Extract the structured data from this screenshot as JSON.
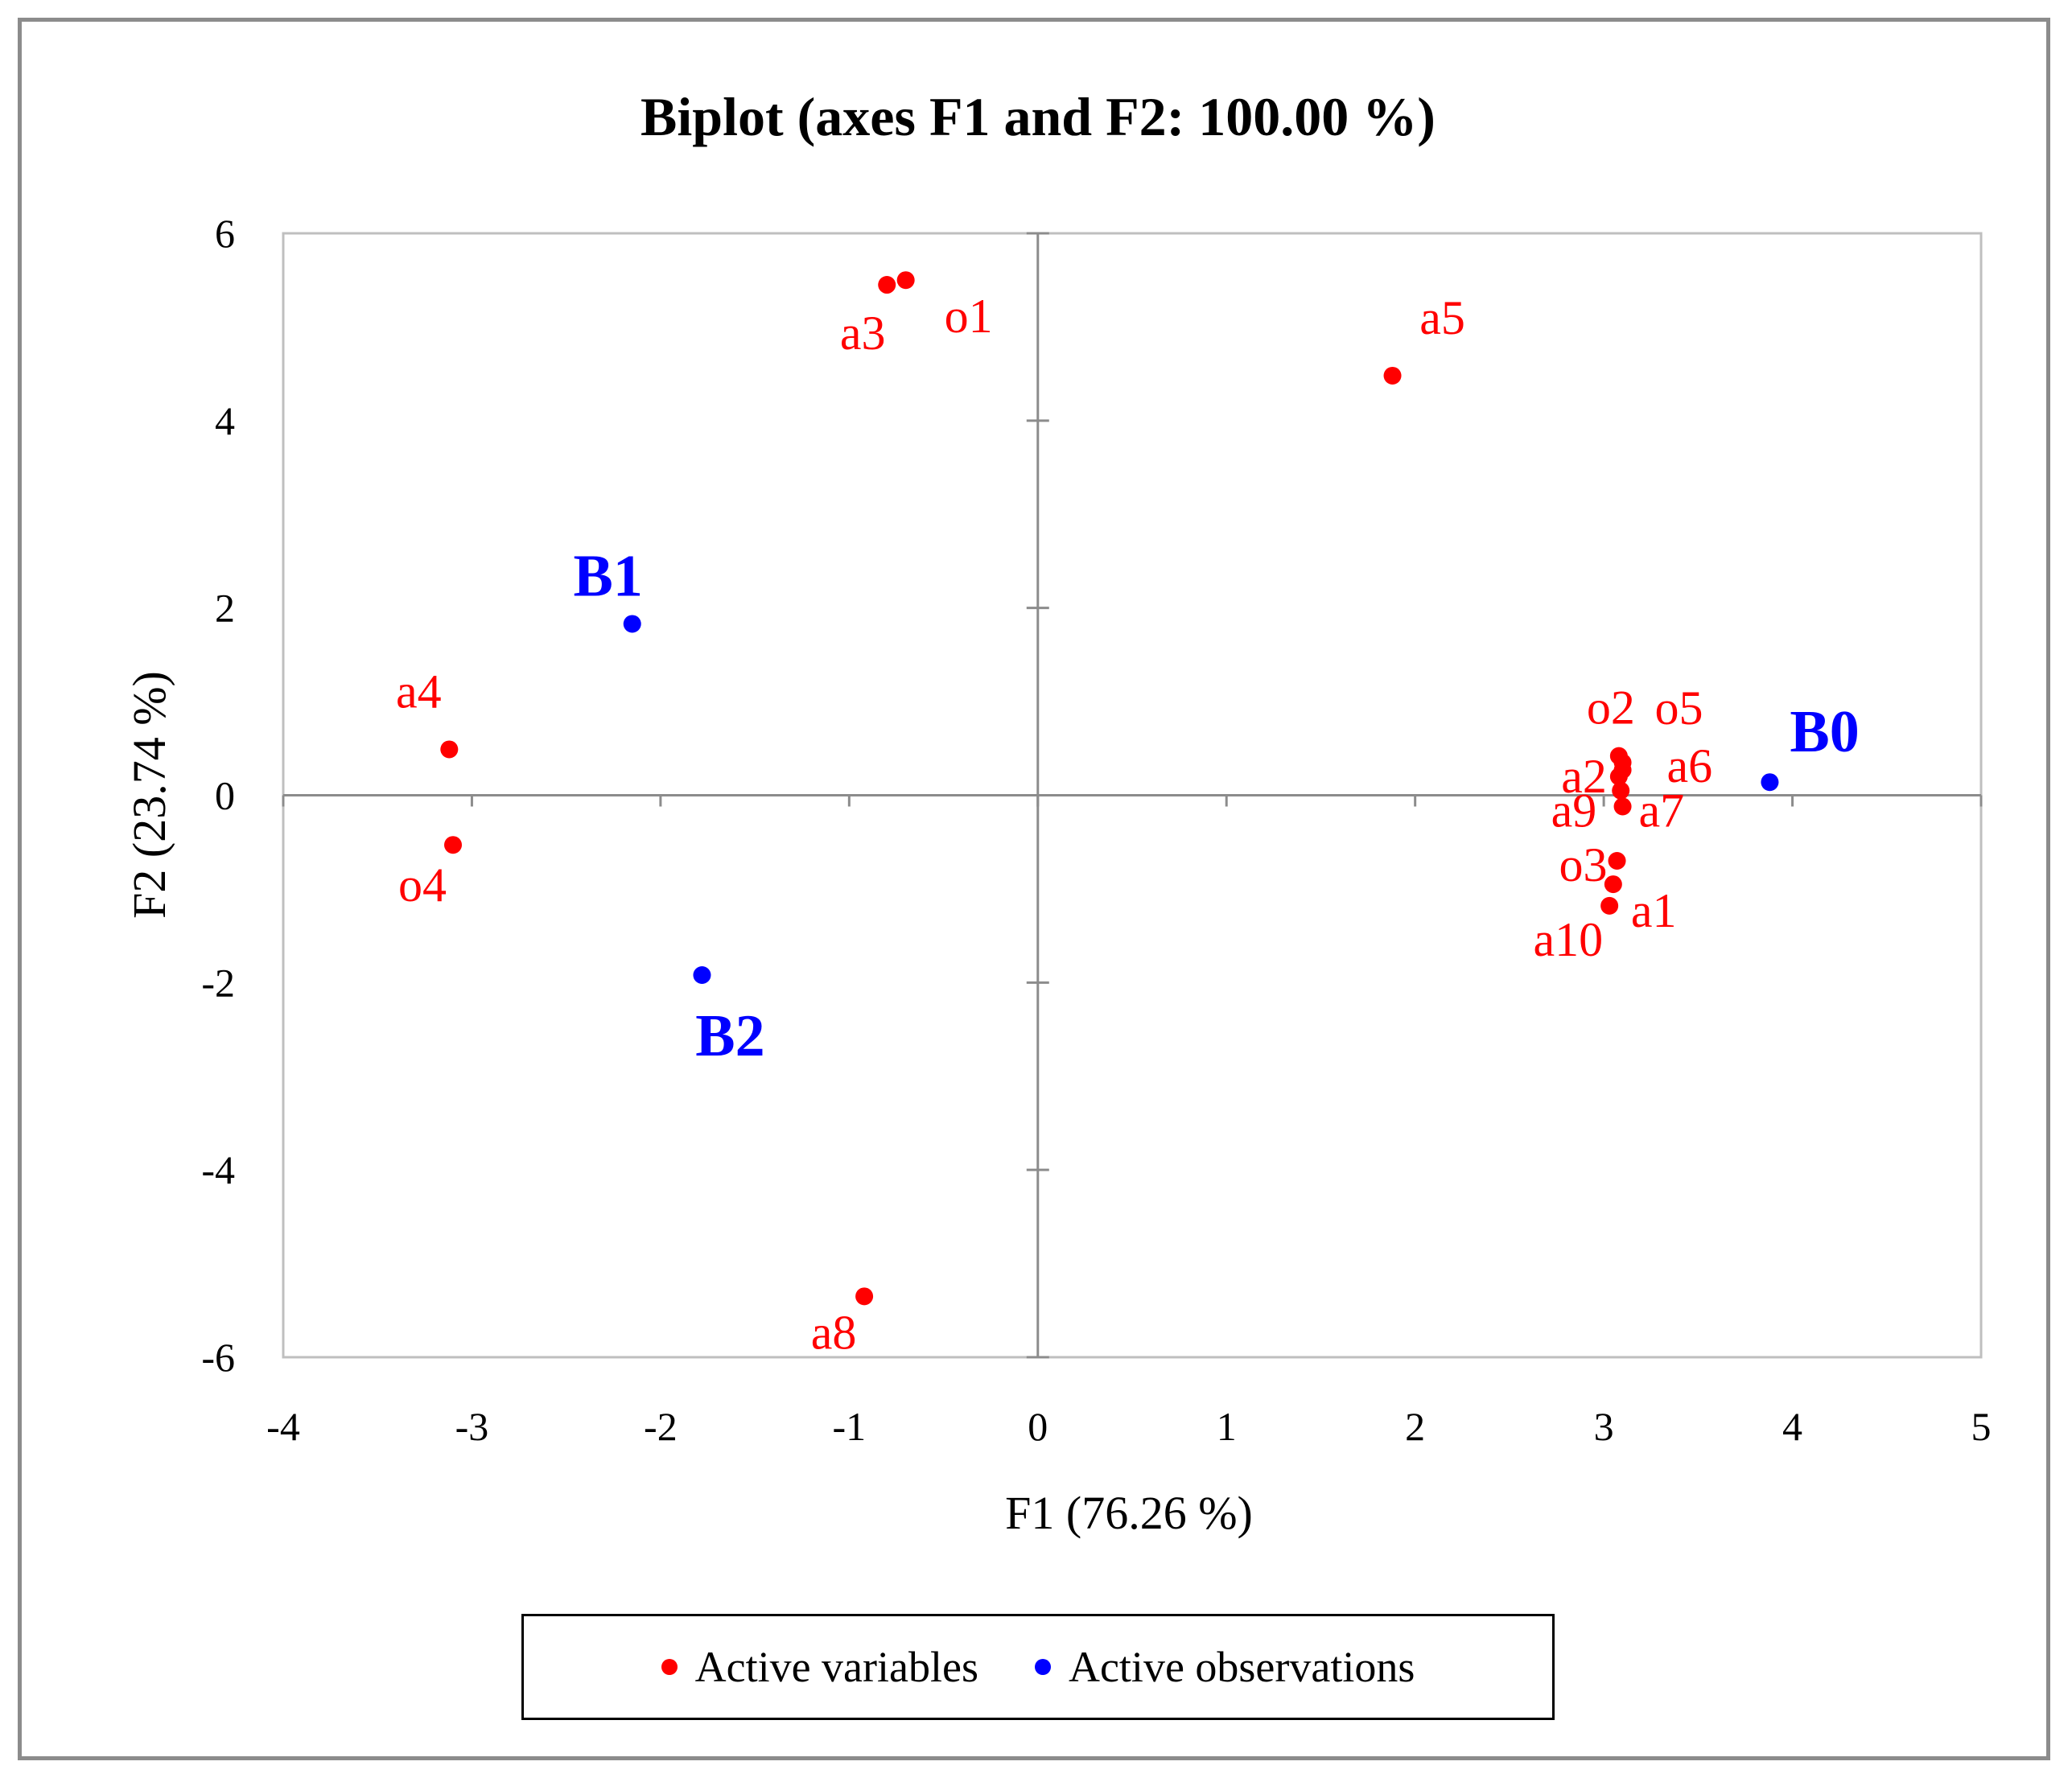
{
  "chart_data": {
    "type": "scatter",
    "title": "Biplot (axes F1 and F2: 100.00 %)",
    "xlabel": "F1 (76.26 %)",
    "ylabel": "F2 (23.74 %)",
    "xlim": [
      -4,
      5
    ],
    "ylim": [
      -6,
      6
    ],
    "xticks": [
      "-4",
      "-3",
      "-2",
      "-1",
      "0",
      "1",
      "2",
      "3",
      "4",
      "5"
    ],
    "yticks": [
      "-6",
      "-4",
      "-2",
      "0",
      "2",
      "4",
      "6"
    ],
    "grid": false,
    "legend_position": "bottom",
    "series": [
      {
        "name": "Active variables",
        "color": "#ff0000",
        "points": [
          {
            "label": "o1",
            "x": -0.7,
            "y": 5.5
          },
          {
            "label": "a3",
            "x": -0.8,
            "y": 5.45
          },
          {
            "label": "a5",
            "x": 1.88,
            "y": 4.48
          },
          {
            "label": "a4",
            "x": -3.12,
            "y": 0.49
          },
          {
            "label": "o4",
            "x": -3.1,
            "y": -0.53
          },
          {
            "label": "a8",
            "x": -0.92,
            "y": -5.35
          },
          {
            "label": "o2",
            "x": 3.08,
            "y": 0.42
          },
          {
            "label": "o5",
            "x": 3.1,
            "y": 0.35
          },
          {
            "label": "a6",
            "x": 3.1,
            "y": 0.27
          },
          {
            "label": "a2",
            "x": 3.08,
            "y": 0.2
          },
          {
            "label": "a9",
            "x": 3.09,
            "y": 0.05
          },
          {
            "label": "a7",
            "x": 3.1,
            "y": -0.12
          },
          {
            "label": "o3",
            "x": 3.07,
            "y": -0.7
          },
          {
            "label": "a1",
            "x": 3.05,
            "y": -0.95
          },
          {
            "label": "a10",
            "x": 3.03,
            "y": -1.18
          }
        ]
      },
      {
        "name": "Active observations",
        "color": "#0000ff",
        "points": [
          {
            "label": "B0",
            "x": 3.88,
            "y": 0.14
          },
          {
            "label": "B1",
            "x": -2.15,
            "y": 1.83
          },
          {
            "label": "B2",
            "x": -1.78,
            "y": -1.92
          }
        ]
      }
    ]
  }
}
